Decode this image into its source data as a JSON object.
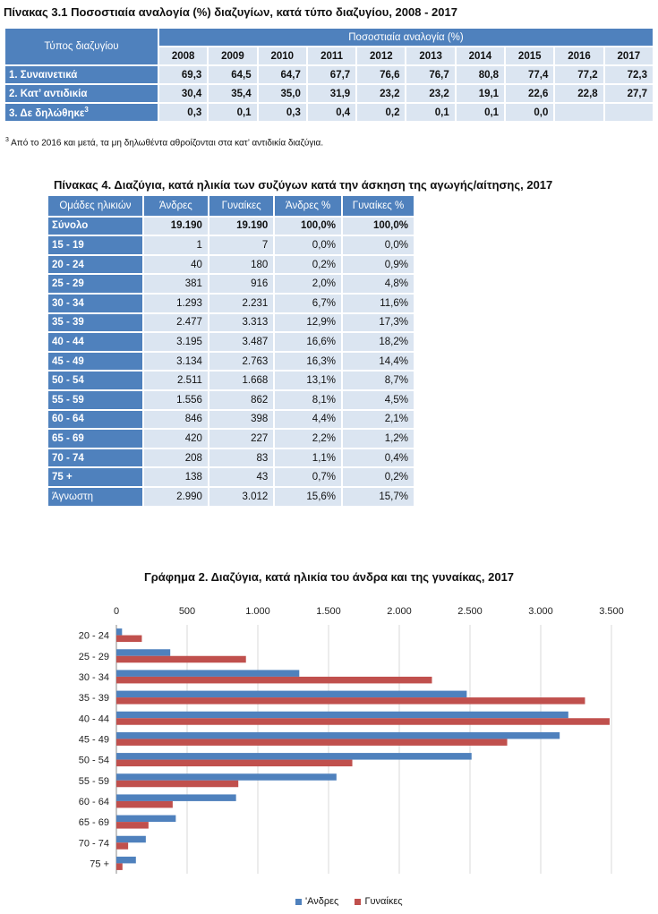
{
  "table1": {
    "title": "Πίνακας 3.1 Ποσοστιαία αναλογία (%) διαζυγίων, κατά τύπο διαζυγίου, 2008 - 2017",
    "corner_label": "Τύπος διαζυγίου",
    "group_label": "Ποσοστιαία αναλογία  (%)",
    "years": [
      "2008",
      "2009",
      "2010",
      "2011",
      "2012",
      "2013",
      "2014",
      "2015",
      "2016",
      "2017"
    ],
    "rows": [
      {
        "label": "1. Συναινετικά",
        "values": [
          "69,3",
          "64,5",
          "64,7",
          "67,7",
          "76,6",
          "76,7",
          "80,8",
          "77,4",
          "77,2",
          "72,3"
        ]
      },
      {
        "label": "2. Κατ’ αντιδικία",
        "values": [
          "30,4",
          "35,4",
          "35,0",
          "31,9",
          "23,2",
          "23,2",
          "19,1",
          "22,6",
          "22,8",
          "27,7"
        ]
      },
      {
        "label": "3. Δε δηλώθηκε",
        "label_sup": "3",
        "values": [
          "0,3",
          "0,1",
          "0,3",
          "0,4",
          "0,2",
          "0,1",
          "0,1",
          "0,0",
          "",
          ""
        ]
      }
    ],
    "footnote_mark": "3",
    "footnote": " Από το 2016 και μετά, τα μη δηλωθέντα αθροίζονται στα κατ’ αντιδικία διαζύγια."
  },
  "table2": {
    "title": "Πίνακας 4. Διαζύγια, κατά ηλικία των συζύγων κατά την άσκηση της αγωγής/αίτησης, 2017",
    "headers": [
      "Ομάδες ηλικιών",
      "Άνδρες",
      "Γυναίκες",
      "Άνδρες %",
      "Γυναίκες %"
    ],
    "rows": [
      {
        "group": "Σύνολο",
        "men": "19.190",
        "women": "19.190",
        "men_pct": "100,0%",
        "women_pct": "100,0%"
      },
      {
        "group": "15 - 19",
        "men": "1",
        "women": "7",
        "men_pct": "0,0%",
        "women_pct": "0,0%"
      },
      {
        "group": "20 - 24",
        "men": "40",
        "women": "180",
        "men_pct": "0,2%",
        "women_pct": "0,9%"
      },
      {
        "group": "25 - 29",
        "men": "381",
        "women": "916",
        "men_pct": "2,0%",
        "women_pct": "4,8%"
      },
      {
        "group": "30 - 34",
        "men": "1.293",
        "women": "2.231",
        "men_pct": "6,7%",
        "women_pct": "11,6%"
      },
      {
        "group": "35 - 39",
        "men": "2.477",
        "women": "3.313",
        "men_pct": "12,9%",
        "women_pct": "17,3%"
      },
      {
        "group": "40 - 44",
        "men": "3.195",
        "women": "3.487",
        "men_pct": "16,6%",
        "women_pct": "18,2%"
      },
      {
        "group": "45 - 49",
        "men": "3.134",
        "women": "2.763",
        "men_pct": "16,3%",
        "women_pct": "14,4%"
      },
      {
        "group": "50 - 54",
        "men": "2.511",
        "women": "1.668",
        "men_pct": "13,1%",
        "women_pct": "8,7%"
      },
      {
        "group": "55 - 59",
        "men": "1.556",
        "women": "862",
        "men_pct": "8,1%",
        "women_pct": "4,5%"
      },
      {
        "group": "60 - 64",
        "men": "846",
        "women": "398",
        "men_pct": "4,4%",
        "women_pct": "2,1%"
      },
      {
        "group": "65 - 69",
        "men": "420",
        "women": "227",
        "men_pct": "2,2%",
        "women_pct": "1,2%"
      },
      {
        "group": "70 - 74",
        "men": "208",
        "women": "83",
        "men_pct": "1,1%",
        "women_pct": "0,4%"
      },
      {
        "group": "75 +",
        "men": "138",
        "women": "43",
        "men_pct": "0,7%",
        "women_pct": "0,2%"
      },
      {
        "group": "Άγνωστη",
        "men": "2.990",
        "women": "3.012",
        "men_pct": "15,6%",
        "women_pct": "15,7%"
      }
    ]
  },
  "colors": {
    "header_blue": "#4f81bd",
    "cell_light": "#dbe5f1",
    "men": "#4f81bd",
    "women": "#c0504d"
  },
  "chart_data": {
    "type": "bar",
    "orientation": "horizontal",
    "title": "Γράφημα 2. Διαζύγια, κατά ηλικία του άνδρα και της γυναίκας, 2017",
    "categories": [
      "20 - 24",
      "25 - 29",
      "30 - 34",
      "35 - 39",
      "40 - 44",
      "45 - 49",
      "50 - 54",
      "55 - 59",
      "60 - 64",
      "65 - 69",
      "70 - 74",
      "75 +"
    ],
    "series": [
      {
        "name": "'Ανδρες",
        "color": "#4f81bd",
        "values": [
          40,
          381,
          1293,
          2477,
          3195,
          3134,
          2511,
          1556,
          846,
          420,
          208,
          138
        ]
      },
      {
        "name": "Γυναίκες",
        "color": "#c0504d",
        "values": [
          180,
          916,
          2231,
          3313,
          3487,
          2763,
          1668,
          862,
          398,
          227,
          83,
          43
        ]
      }
    ],
    "xlim": [
      0,
      3500
    ],
    "xticks": [
      "0",
      "500",
      "1.000",
      "1.500",
      "2.000",
      "2.500",
      "3.000",
      "3.500"
    ],
    "xaxis_position": "top",
    "grid": true,
    "legend_position": "bottom"
  }
}
